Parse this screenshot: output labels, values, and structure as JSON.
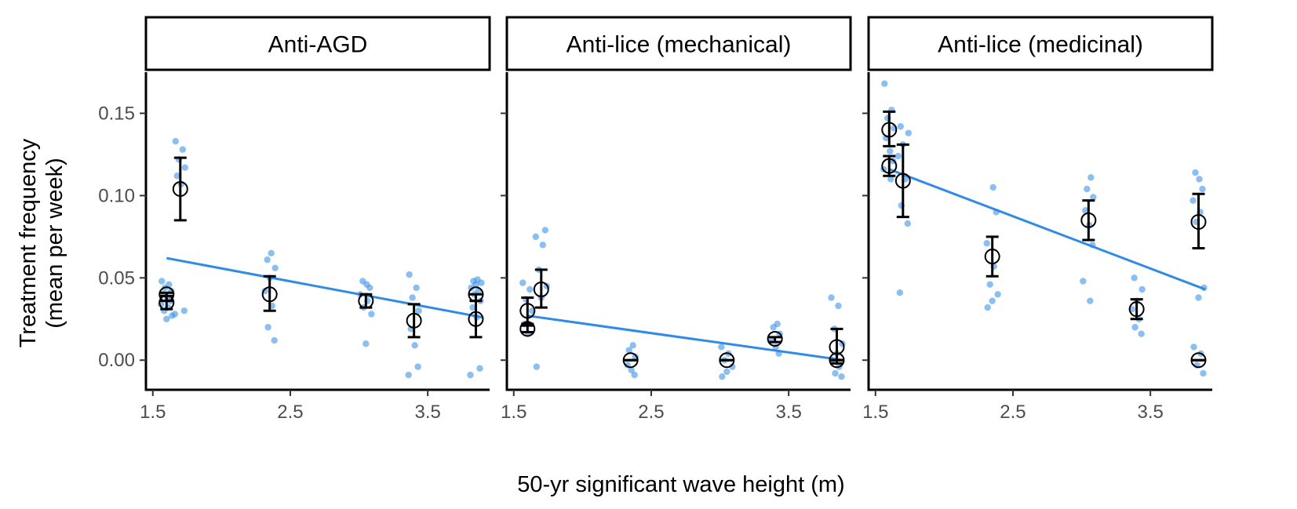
{
  "chart_data": {
    "type": "scatter",
    "xlabel": "50-yr significant wave height (m)",
    "ylabel_lines": [
      "Treatment frequency",
      "(mean per week)"
    ],
    "xlim": [
      1.45,
      3.95
    ],
    "ylim": [
      -0.018,
      0.175
    ],
    "x_ticks": [
      1.5,
      2.5,
      3.5
    ],
    "x_tick_labels": [
      "1.5",
      "2.5",
      "3.5"
    ],
    "y_ticks": [
      0.0,
      0.05,
      0.1,
      0.15
    ],
    "y_tick_labels": [
      "0.00",
      "0.05",
      "0.10",
      "0.15"
    ],
    "grid": false,
    "colors": {
      "points": "#3d93e8",
      "trend": "#2f8be6",
      "means": "#000000"
    },
    "panels": [
      {
        "title": "Anti-AGD",
        "trend": {
          "x": [
            1.6,
            3.9
          ],
          "y": [
            0.062,
            0.026
          ]
        },
        "means": [
          {
            "x": 1.6,
            "mean": 0.04,
            "lo": 0.036,
            "hi": 0.041
          },
          {
            "x": 1.6,
            "mean": 0.035,
            "lo": 0.031,
            "hi": 0.039
          },
          {
            "x": 1.7,
            "mean": 0.104,
            "lo": 0.085,
            "hi": 0.123
          },
          {
            "x": 2.35,
            "mean": 0.04,
            "lo": 0.03,
            "hi": 0.051
          },
          {
            "x": 3.05,
            "mean": 0.036,
            "lo": 0.032,
            "hi": 0.04
          },
          {
            "x": 3.4,
            "mean": 0.024,
            "lo": 0.014,
            "hi": 0.034
          },
          {
            "x": 3.85,
            "mean": 0.04,
            "lo": 0.036,
            "hi": 0.04
          },
          {
            "x": 3.85,
            "mean": 0.025,
            "lo": 0.014,
            "hi": 0.036
          }
        ],
        "points": {
          "x": [
            1.6,
            1.6,
            1.6,
            1.6,
            1.6,
            1.6,
            1.6,
            1.6,
            1.6,
            1.6,
            1.6,
            1.6,
            1.7,
            1.7,
            1.7,
            1.7,
            1.7,
            1.7,
            1.7,
            1.7,
            2.35,
            2.35,
            2.35,
            2.35,
            2.35,
            2.35,
            2.35,
            2.35,
            3.05,
            3.05,
            3.05,
            3.05,
            3.05,
            3.05,
            3.05,
            3.05,
            3.4,
            3.4,
            3.4,
            3.4,
            3.4,
            3.4,
            3.4,
            3.4,
            3.85,
            3.85,
            3.85,
            3.85,
            3.85,
            3.85,
            3.85,
            3.85,
            3.85,
            3.85,
            3.85,
            3.85
          ],
          "y": [
            0.048,
            0.046,
            0.044,
            0.042,
            0.04,
            0.038,
            0.036,
            0.034,
            0.032,
            0.03,
            0.027,
            0.025,
            0.133,
            0.128,
            0.122,
            0.117,
            0.112,
            0.107,
            0.03,
            0.028,
            0.065,
            0.061,
            0.056,
            0.05,
            0.042,
            0.033,
            0.02,
            0.012,
            0.048,
            0.046,
            0.044,
            0.04,
            0.036,
            0.032,
            0.028,
            0.01,
            0.052,
            0.044,
            0.038,
            0.03,
            0.019,
            0.009,
            -0.004,
            -0.009,
            0.049,
            0.048,
            0.047,
            0.046,
            0.044,
            0.042,
            0.04,
            0.036,
            0.032,
            0.026,
            -0.005,
            -0.009
          ]
        }
      },
      {
        "title": "Anti-lice (mechanical)",
        "trend": {
          "x": [
            1.6,
            3.9
          ],
          "y": [
            0.027,
            0.0
          ]
        },
        "means": [
          {
            "x": 1.6,
            "mean": 0.03,
            "lo": 0.022,
            "hi": 0.038
          },
          {
            "x": 1.6,
            "mean": 0.019,
            "lo": 0.017,
            "hi": 0.021
          },
          {
            "x": 1.7,
            "mean": 0.043,
            "lo": 0.032,
            "hi": 0.055
          },
          {
            "x": 2.35,
            "mean": 0.0,
            "lo": 0.0,
            "hi": 0.0
          },
          {
            "x": 3.05,
            "mean": 0.0,
            "lo": 0.0,
            "hi": 0.0
          },
          {
            "x": 3.4,
            "mean": 0.013,
            "lo": 0.011,
            "hi": 0.014
          },
          {
            "x": 3.85,
            "mean": 0.008,
            "lo": -0.002,
            "hi": 0.019
          },
          {
            "x": 3.85,
            "mean": 0.0,
            "lo": 0.0,
            "hi": 0.0
          }
        ],
        "points": {
          "x": [
            1.6,
            1.6,
            1.6,
            1.6,
            1.6,
            1.6,
            1.7,
            1.7,
            1.7,
            1.7,
            1.7,
            1.7,
            1.7,
            2.35,
            2.35,
            2.35,
            2.35,
            2.35,
            2.35,
            3.05,
            3.05,
            3.05,
            3.05,
            3.05,
            3.05,
            3.4,
            3.4,
            3.4,
            3.4,
            3.4,
            3.4,
            3.85,
            3.85,
            3.85,
            3.85,
            3.85,
            3.85,
            3.85,
            3.85,
            3.85
          ],
          "y": [
            0.047,
            0.043,
            0.037,
            0.03,
            0.022,
            0.016,
            0.079,
            0.075,
            0.07,
            0.055,
            0.045,
            0.038,
            -0.004,
            0.009,
            0.006,
            0.002,
            -0.003,
            -0.006,
            -0.009,
            0.008,
            0.004,
            0.0,
            -0.004,
            -0.007,
            -0.01,
            0.022,
            0.02,
            0.016,
            0.012,
            0.008,
            0.004,
            0.038,
            0.033,
            0.019,
            0.01,
            0.004,
            0.0,
            -0.004,
            -0.008,
            -0.01
          ]
        }
      },
      {
        "title": "Anti-lice (medicinal)",
        "trend": {
          "x": [
            1.6,
            3.9
          ],
          "y": [
            0.116,
            0.043
          ]
        },
        "means": [
          {
            "x": 1.6,
            "mean": 0.14,
            "lo": 0.13,
            "hi": 0.151
          },
          {
            "x": 1.6,
            "mean": 0.118,
            "lo": 0.112,
            "hi": 0.124
          },
          {
            "x": 1.7,
            "mean": 0.109,
            "lo": 0.087,
            "hi": 0.131
          },
          {
            "x": 2.35,
            "mean": 0.063,
            "lo": 0.051,
            "hi": 0.075
          },
          {
            "x": 3.05,
            "mean": 0.085,
            "lo": 0.073,
            "hi": 0.097
          },
          {
            "x": 3.4,
            "mean": 0.031,
            "lo": 0.025,
            "hi": 0.037
          },
          {
            "x": 3.85,
            "mean": 0.084,
            "lo": 0.068,
            "hi": 0.101
          },
          {
            "x": 3.85,
            "mean": 0.0,
            "lo": 0.0,
            "hi": 0.0
          }
        ],
        "points": {
          "x": [
            1.6,
            1.6,
            1.6,
            1.6,
            1.6,
            1.6,
            1.6,
            1.6,
            1.6,
            1.7,
            1.7,
            1.7,
            1.7,
            1.7,
            1.7,
            1.7,
            1.7,
            2.35,
            2.35,
            2.35,
            2.35,
            2.35,
            2.35,
            2.35,
            2.35,
            3.05,
            3.05,
            3.05,
            3.05,
            3.05,
            3.05,
            3.05,
            3.05,
            3.4,
            3.4,
            3.4,
            3.4,
            3.4,
            3.4,
            3.4,
            3.85,
            3.85,
            3.85,
            3.85,
            3.85,
            3.85,
            3.85,
            3.85,
            3.85,
            3.85,
            3.85,
            3.85
          ],
          "y": [
            0.168,
            0.152,
            0.147,
            0.141,
            0.135,
            0.127,
            0.121,
            0.116,
            0.11,
            0.142,
            0.138,
            0.131,
            0.124,
            0.11,
            0.094,
            0.083,
            0.041,
            0.105,
            0.09,
            0.071,
            0.057,
            0.046,
            0.04,
            0.036,
            0.032,
            0.111,
            0.104,
            0.099,
            0.091,
            0.082,
            0.07,
            0.048,
            0.036,
            0.05,
            0.043,
            0.036,
            0.031,
            0.025,
            0.02,
            0.016,
            0.114,
            0.11,
            0.104,
            0.097,
            0.09,
            0.084,
            0.044,
            0.038,
            0.008,
            0.004,
            -0.003,
            -0.008
          ]
        }
      }
    ]
  }
}
